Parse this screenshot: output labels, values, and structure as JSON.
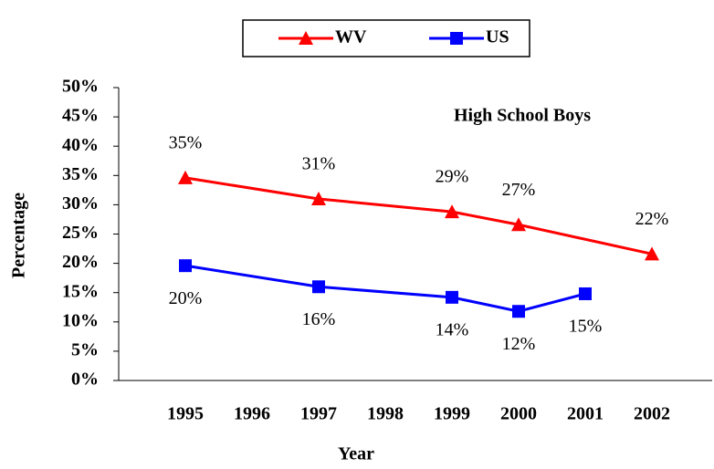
{
  "chart_data": {
    "type": "line",
    "annotation": "High School Boys",
    "x_label": "Year",
    "y_label": "Percentage",
    "categories": [
      "1995",
      "1996",
      "1997",
      "1998",
      "1999",
      "2000",
      "2001",
      "2002"
    ],
    "connect_gaps": true,
    "series": [
      {
        "name": "WV",
        "color": "#ff0000",
        "marker": "triangle",
        "values": [
          34.6,
          null,
          31.0,
          null,
          28.8,
          26.6,
          null,
          21.6
        ],
        "value_labels": [
          "35%",
          null,
          "31%",
          null,
          "29%",
          "27%",
          null,
          "22%"
        ],
        "label_position": "above"
      },
      {
        "name": "US",
        "color": "#0000ff",
        "marker": "square",
        "values": [
          19.6,
          null,
          16.0,
          null,
          14.2,
          11.8,
          14.8,
          null
        ],
        "value_labels": [
          "20%",
          null,
          "16%",
          null,
          "14%",
          "12%",
          "15%",
          null
        ],
        "label_position": "below"
      }
    ],
    "ylim": [
      0,
      50
    ],
    "yticks": [
      {
        "value": 0,
        "label": "0%"
      },
      {
        "value": 5,
        "label": "5%"
      },
      {
        "value": 10,
        "label": "10%"
      },
      {
        "value": 15,
        "label": "15%"
      },
      {
        "value": 20,
        "label": "20%"
      },
      {
        "value": 25,
        "label": "25%"
      },
      {
        "value": 30,
        "label": "30%"
      },
      {
        "value": 35,
        "label": "35%"
      },
      {
        "value": 40,
        "label": "40%"
      },
      {
        "value": 45,
        "label": "45%"
      },
      {
        "value": 50,
        "label": "50%"
      }
    ],
    "grid": false,
    "legend": "top"
  }
}
